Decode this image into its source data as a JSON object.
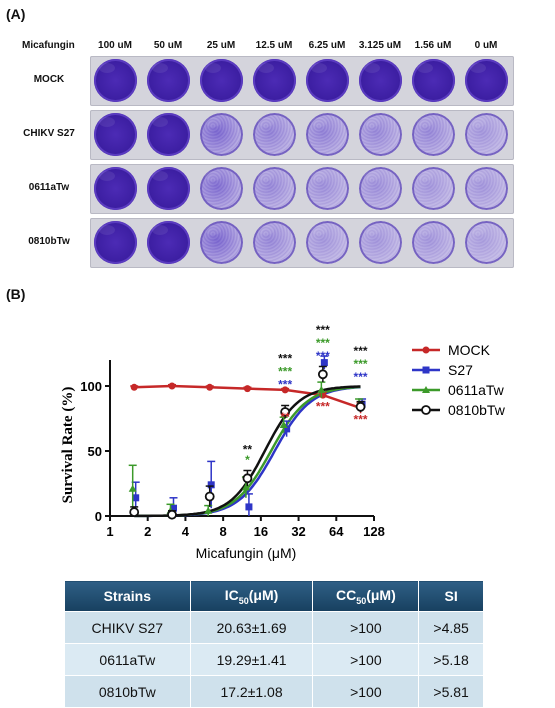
{
  "panel_a": {
    "label": "(A)",
    "header_label": "Micafungin",
    "concentrations": [
      "100 uM",
      "50 uM",
      "25 uM",
      "12.5 uM",
      "6.25 uM",
      "3.125 uM",
      "1.56 uM",
      "0 uM"
    ],
    "rows": [
      {
        "name": "MOCK",
        "stain": [
          1,
          1,
          1,
          1,
          1,
          1,
          1,
          1
        ]
      },
      {
        "name": "CHIKV S27",
        "stain": [
          1,
          1,
          0.75,
          0.55,
          0.55,
          0.5,
          0.5,
          0.4
        ]
      },
      {
        "name": "0611aTw",
        "stain": [
          1,
          1,
          0.7,
          0.5,
          0.45,
          0.45,
          0.4,
          0.4
        ]
      },
      {
        "name": "0810bTw",
        "stain": [
          1,
          1,
          0.75,
          0.5,
          0.4,
          0.4,
          0.4,
          0.35
        ]
      }
    ]
  },
  "panel_b": {
    "label": "(B)",
    "chart_data": {
      "type": "line",
      "xlabel": "Micafungin (μM)",
      "ylabel": "Survival Rate (%)",
      "x_scale": "log2",
      "xlim": [
        1,
        128
      ],
      "ylim": [
        0,
        120
      ],
      "x_ticks": [
        1,
        2,
        4,
        8,
        16,
        32,
        64,
        128
      ],
      "y_ticks": [
        0,
        50,
        100
      ],
      "legend_position": "right",
      "series": [
        {
          "name": "MOCK",
          "color": "#c62828",
          "marker": "circle",
          "x": [
            1.56,
            3.125,
            6.25,
            12.5,
            25,
            50,
            100
          ],
          "y": [
            99,
            100,
            99,
            98,
            97,
            93,
            83
          ],
          "err": [
            1,
            1,
            1,
            1,
            1,
            2,
            4
          ],
          "fit": {
            "type": "linear_segments"
          }
        },
        {
          "name": "S27",
          "color": "#2e35c7",
          "marker": "square",
          "x": [
            1.56,
            3.125,
            6.25,
            12.5,
            25,
            50,
            100
          ],
          "y": [
            14,
            6,
            24,
            7,
            67,
            118,
            86
          ],
          "err": [
            12,
            8,
            18,
            10,
            6,
            5,
            4
          ],
          "fit": {
            "ic50": 20.63,
            "hill": 3,
            "top": 100
          }
        },
        {
          "name": "0611aTw",
          "color": "#3c9a2a",
          "marker": "triangle",
          "x": [
            1.56,
            3.125,
            6.25,
            12.5,
            25,
            50,
            100
          ],
          "y": [
            21,
            4,
            4,
            22,
            70,
            97,
            86
          ],
          "err": [
            18,
            5,
            4,
            8,
            6,
            6,
            4
          ],
          "fit": {
            "ic50": 19.29,
            "hill": 3,
            "top": 100
          }
        },
        {
          "name": "0810bTw",
          "color": "#111111",
          "marker": "open-circle",
          "x": [
            1.56,
            3.125,
            6.25,
            12.5,
            25,
            50,
            100
          ],
          "y": [
            3,
            1,
            15,
            29,
            80,
            109,
            84
          ],
          "err": [
            4,
            3,
            8,
            6,
            5,
            6,
            4
          ],
          "fit": {
            "ic50": 17.2,
            "hill": 3.2,
            "top": 100
          }
        }
      ],
      "annotations": [
        {
          "x": 12.5,
          "y": 48,
          "text": "**",
          "color": "#111111"
        },
        {
          "x": 12.5,
          "y": 40,
          "text": "*",
          "color": "#3c9a2a"
        },
        {
          "x": 25,
          "y": 118,
          "text": "***",
          "color": "#111111"
        },
        {
          "x": 25,
          "y": 108,
          "text": "***",
          "color": "#3c9a2a"
        },
        {
          "x": 25,
          "y": 98,
          "text": "***",
          "color": "#2e35c7"
        },
        {
          "x": 25,
          "y": 73,
          "text": "**",
          "color": "#c62828"
        },
        {
          "x": 50,
          "y": 140,
          "text": "***",
          "color": "#111111"
        },
        {
          "x": 50,
          "y": 130,
          "text": "***",
          "color": "#3c9a2a"
        },
        {
          "x": 50,
          "y": 120,
          "text": "***",
          "color": "#2e35c7"
        },
        {
          "x": 50,
          "y": 81,
          "text": "***",
          "color": "#c62828"
        },
        {
          "x": 100,
          "y": 124,
          "text": "***",
          "color": "#111111"
        },
        {
          "x": 100,
          "y": 114,
          "text": "***",
          "color": "#3c9a2a"
        },
        {
          "x": 100,
          "y": 104,
          "text": "***",
          "color": "#2e35c7"
        },
        {
          "x": 100,
          "y": 71,
          "text": "***",
          "color": "#c62828"
        }
      ]
    }
  },
  "table": {
    "headers": [
      "Strains",
      "IC50(μM)",
      "CC50(μM)",
      "SI"
    ],
    "rows": [
      [
        "CHIKV S27",
        "20.63±1.69",
        ">100",
        ">4.85"
      ],
      [
        "0611aTw",
        "19.29±1.41",
        ">100",
        ">5.18"
      ],
      [
        "0810bTw",
        "17.2±1.08",
        ">100",
        ">5.81"
      ]
    ]
  }
}
